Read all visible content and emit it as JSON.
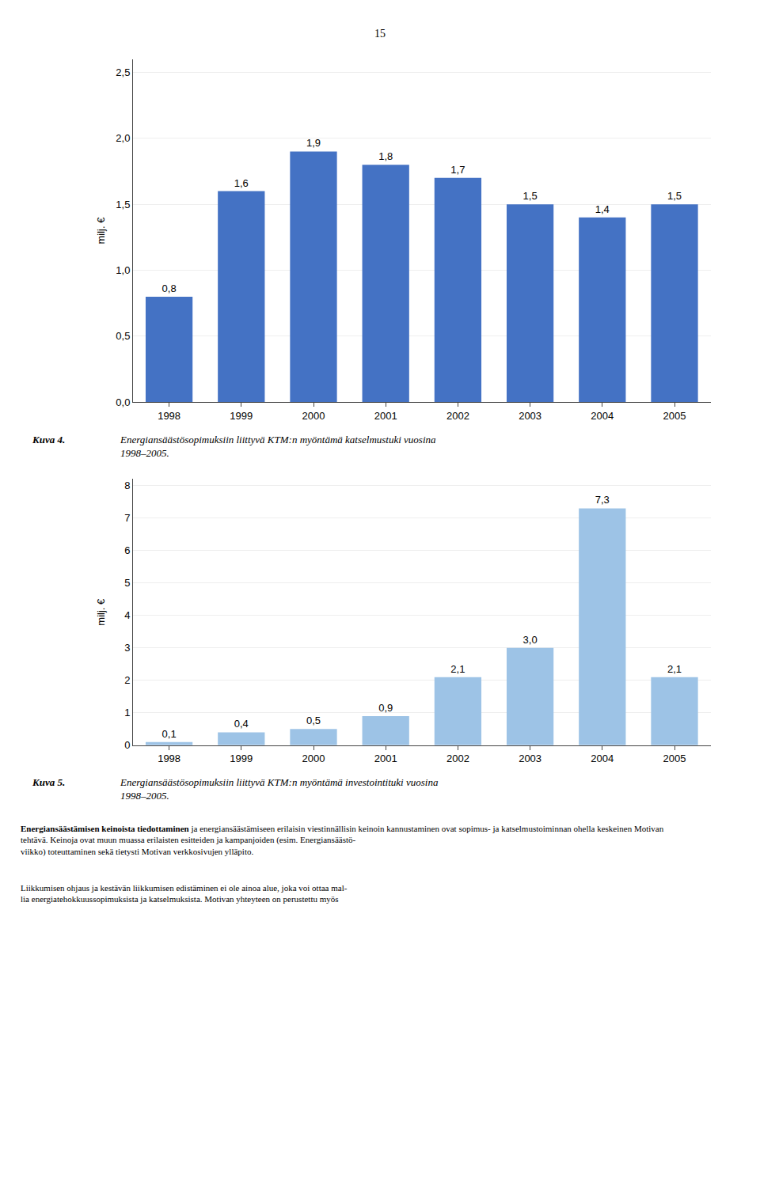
{
  "annotations": [
    "15",
    "Energiansäästämisen keinoista tiedottaminen",
    " ja energiansäästämiseen erilaisin viestinnällisin keinoin kannustaminen ovat sopimus- ja katselmustoiminnan ohella keskeinen Motivan\ntehtävä. Keinoja ovat muun muassa erilaisten esitteiden ja kampanjoiden (esim. Energiansäästö-\nviikko) toteuttaminen sekä tietysti Motivan verkkosivujen ylläpito.",
    "Liikkumisen ohjaus ja kestävän liikkumisen edistäminen ei ole ainoa alue, joka voi ottaa mal-\nlia energiatehokkuussopimuksista ja katselmuksista. Motivan yhteyteen on perustettu myös"
  ],
  "chart_data": [
    {
      "type": "bar",
      "title": "Kuva 4.",
      "subtitle": "Energiansäästösopimuksiin liittyvä KTM:n myöntämä katselmustuki vuosina\n1998–2005.",
      "categories": [
        "1998",
        "1999",
        "2000",
        "2001",
        "2002",
        "2003",
        "2004",
        "2005"
      ],
      "values": [
        0.8,
        1.6,
        1.9,
        1.8,
        1.7,
        1.5,
        1.4,
        1.5
      ],
      "value_labels": [
        "0,8",
        "1,6",
        "1,9",
        "1,8",
        "1,7",
        "1,5",
        "1,4",
        "1,5"
      ],
      "data_labels": true,
      "color": "#4472C4",
      "ylabel": "milj. €",
      "ylim": [
        0.0,
        2.6
      ],
      "yticks": [
        {
          "value": 0.0,
          "label": "0,0"
        },
        {
          "value": 0.5,
          "label": "0,5"
        },
        {
          "value": 1.0,
          "label": "1,0"
        },
        {
          "value": 1.5,
          "label": "1,5"
        },
        {
          "value": 2.0,
          "label": "2,0"
        },
        {
          "value": 2.5,
          "label": "2,5"
        }
      ],
      "grid": true
    },
    {
      "type": "bar",
      "title": "Kuva 5.",
      "subtitle": "Energiansäästösopimuksiin liittyvä KTM:n myöntämä investointituki vuosina\n1998–2005.",
      "categories": [
        "1998",
        "1999",
        "2000",
        "2001",
        "2002",
        "2003",
        "2004",
        "2005"
      ],
      "values": [
        0.1,
        0.4,
        0.5,
        0.9,
        2.1,
        3.0,
        7.3,
        2.1
      ],
      "value_labels": [
        "0,1",
        "0,4",
        "0,5",
        "0,9",
        "2,1",
        "3,0",
        "7,3",
        "2,1"
      ],
      "data_labels": true,
      "color": "#9DC3E6",
      "ylabel": "milj. €",
      "ylim": [
        0,
        8.2
      ],
      "yticks": [
        0,
        1,
        2,
        3,
        4,
        5,
        6,
        7,
        8
      ],
      "grid": true
    }
  ]
}
